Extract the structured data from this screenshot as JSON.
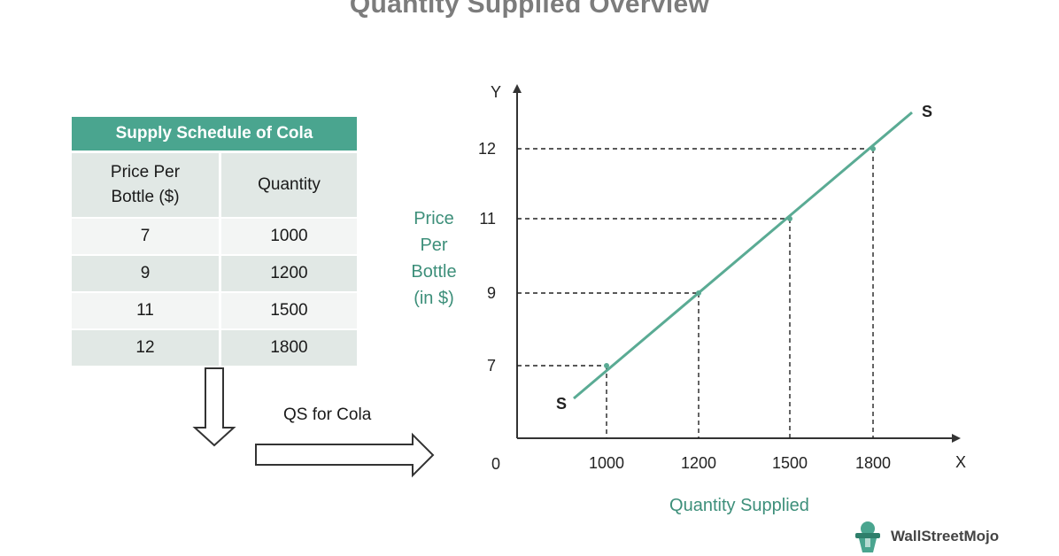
{
  "title": "Quantity Supplied Overview",
  "table": {
    "caption": "Supply Schedule of Cola",
    "headers": [
      "Price Per\nBottle ($)",
      "Quantity"
    ],
    "rows": [
      [
        "7",
        "1000"
      ],
      [
        "9",
        "1200"
      ],
      [
        "11",
        "1500"
      ],
      [
        "12",
        "1800"
      ]
    ]
  },
  "arrow_label": "QS for Cola",
  "chart_data": {
    "type": "line",
    "title": "",
    "xlabel": "Quantity Supplied",
    "ylabel": "Price\nPer\nBottle\n(in $)",
    "x_axis_letter": "X",
    "y_axis_letter": "Y",
    "origin_label": "0",
    "x_ticks": [
      "1000",
      "1200",
      "1500",
      "1800"
    ],
    "y_ticks": [
      "7",
      "9",
      "11",
      "12"
    ],
    "series": [
      {
        "name": "S",
        "x": [
          1000,
          1200,
          1500,
          1800
        ],
        "y": [
          7,
          9,
          11,
          12
        ]
      }
    ],
    "curve_end_labels": [
      "S",
      "S"
    ],
    "dashed_guides": true,
    "colors": {
      "line": "#5aab94",
      "axis_title": "#3d8f7a"
    }
  },
  "logo": {
    "text": "WallStreetMojo",
    "icon": "mascot-icon"
  },
  "colors": {
    "header": "#4aa58f",
    "row_light": "#f3f5f4",
    "row_dark": "#e1e8e5",
    "title": "#7c7c7c"
  }
}
